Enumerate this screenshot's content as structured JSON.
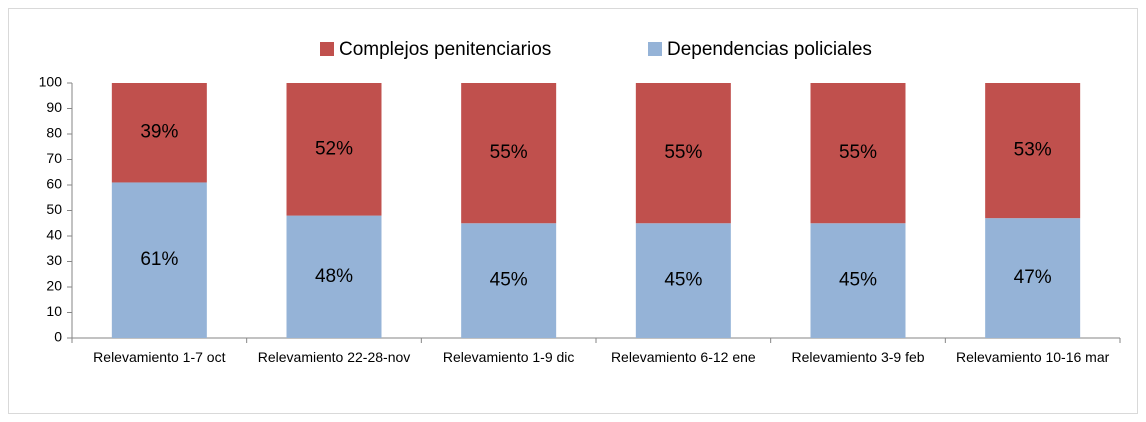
{
  "chart_data": {
    "type": "stacked_bar",
    "categories": [
      "Relevamiento 1-7 oct",
      "Relevamiento 22-28-nov",
      "Relevamiento 1-9 dic",
      "Relevamiento 6-12 ene",
      "Relevamiento 3-9 feb",
      "Relevamiento 10-16 mar"
    ],
    "series": [
      {
        "name": "Complejos penitenciarios",
        "color": "#c0504d",
        "values": [
          39,
          52,
          55,
          55,
          55,
          53
        ],
        "value_labels": [
          "39%",
          "52%",
          "55%",
          "55%",
          "55%",
          "53%"
        ]
      },
      {
        "name": "Dependencias policiales",
        "color": "#95b3d7",
        "values": [
          61,
          48,
          45,
          45,
          45,
          47
        ],
        "value_labels": [
          "61%",
          "48%",
          "45%",
          "45%",
          "45%",
          "47%"
        ]
      }
    ],
    "ylim": [
      0,
      100
    ],
    "yticks": [
      0,
      10,
      20,
      30,
      40,
      50,
      60,
      70,
      80,
      90,
      100
    ],
    "legend": "top"
  }
}
